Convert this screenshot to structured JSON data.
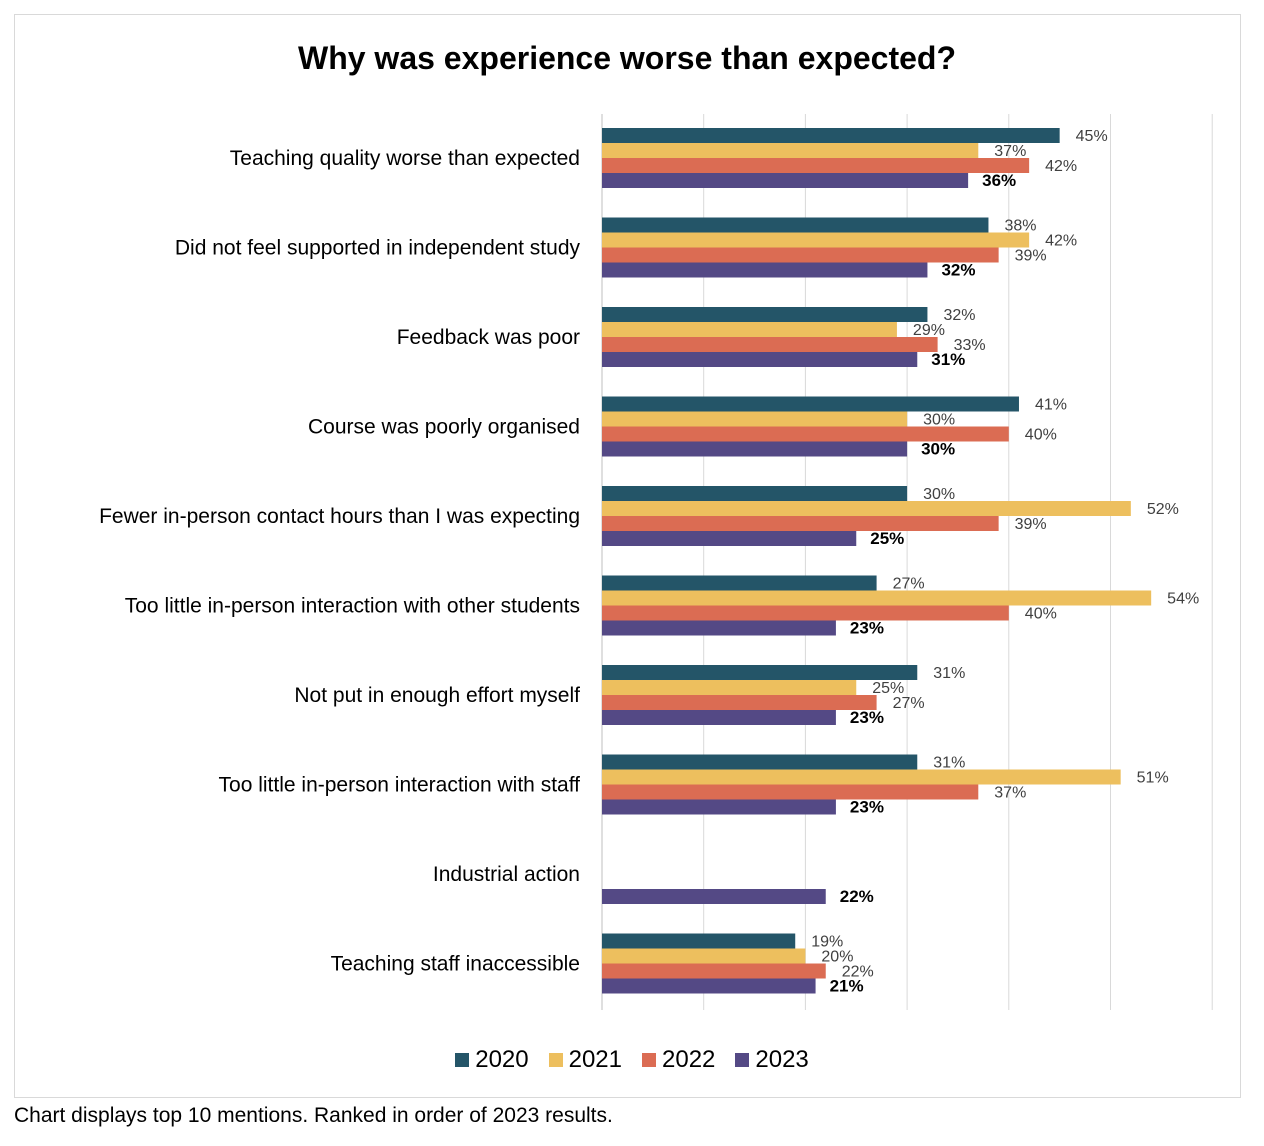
{
  "chart_data": {
    "type": "bar",
    "orientation": "horizontal",
    "title": "Why was experience worse than expected?",
    "footnote": "Chart displays top 10 mentions. Ranked in order of 2023 results.",
    "categories": [
      "Teaching quality worse than expected",
      "Did not feel supported in independent study",
      "Feedback was poor",
      "Course was poorly organised",
      "Fewer in-person contact hours than I was expecting",
      "Too little in-person interaction with other students",
      "Not put in enough effort myself",
      "Too little in-person interaction with staff",
      "Industrial action",
      "Teaching staff inaccessible"
    ],
    "series": [
      {
        "name": "2020",
        "color": "#245568",
        "values": [
          45,
          38,
          32,
          41,
          30,
          27,
          31,
          31,
          null,
          19
        ]
      },
      {
        "name": "2021",
        "color": "#EDBF5E",
        "values": [
          37,
          42,
          29,
          30,
          52,
          54,
          25,
          51,
          null,
          20
        ]
      },
      {
        "name": "2022",
        "color": "#DB6C53",
        "values": [
          42,
          39,
          33,
          40,
          39,
          40,
          27,
          37,
          null,
          22
        ]
      },
      {
        "name": "2023",
        "color": "#544985",
        "values": [
          36,
          32,
          31,
          30,
          25,
          23,
          23,
          23,
          22,
          21
        ]
      }
    ],
    "value_suffix": "%",
    "xlim": [
      0,
      60
    ],
    "grid": true,
    "legend": "bottom",
    "highlight_series": "2023"
  }
}
